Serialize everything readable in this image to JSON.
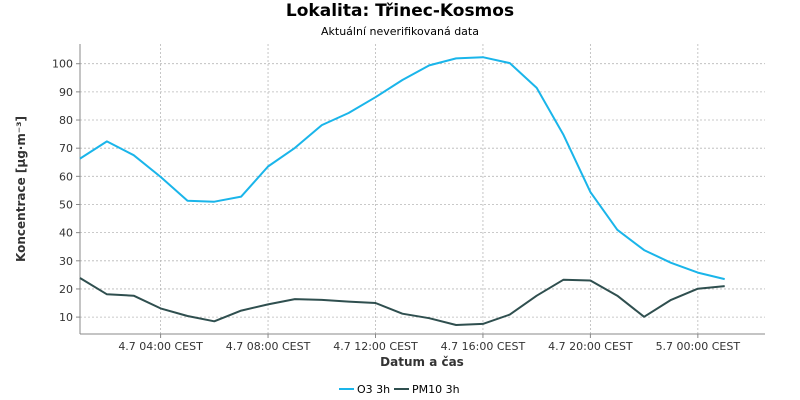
{
  "chart_data": {
    "type": "line",
    "title": "Lokalita: Třinec-Kosmos",
    "subtitle": "Aktuální neverifikovaná data",
    "xlabel": "Datum a čas",
    "ylabel": "Koncentrace [µg·m⁻³]",
    "ylim": [
      4,
      107
    ],
    "yticks": [
      10,
      20,
      30,
      40,
      50,
      60,
      70,
      80,
      90,
      100
    ],
    "xlim": [
      -1.0,
      24.5
    ],
    "xticks": [
      {
        "x": 2,
        "label": "4.7 04:00 CEST"
      },
      {
        "x": 6,
        "label": "4.7 08:00 CEST"
      },
      {
        "x": 10,
        "label": "4.7 12:00 CEST"
      },
      {
        "x": 14,
        "label": "4.7 16:00 CEST"
      },
      {
        "x": 18,
        "label": "4.7 20:00 CEST"
      },
      {
        "x": 22,
        "label": "5.7 00:00 CEST"
      }
    ],
    "grid": true,
    "legend_position": "bottom",
    "x": [
      -1,
      0,
      1,
      2,
      3,
      4,
      5,
      6,
      7,
      8,
      9,
      10,
      11,
      12,
      13,
      14,
      15,
      16,
      17,
      18,
      19,
      20,
      21,
      22,
      23
    ],
    "series": [
      {
        "name": "O3 3h",
        "color": "#1ab5ea",
        "values": [
          66.3,
          72.4,
          67.5,
          59.8,
          51.3,
          51.0,
          52.8,
          63.5,
          70.1,
          78.2,
          82.5,
          88.1,
          94.2,
          99.4,
          101.9,
          102.3,
          100.2,
          91.4,
          74.7,
          54.4,
          41.0,
          33.8,
          29.3,
          25.8,
          23.5
        ]
      },
      {
        "name": "PM10 3h",
        "color": "#2f4f4f",
        "values": [
          23.9,
          18.1,
          17.6,
          13.1,
          10.4,
          8.5,
          12.3,
          14.5,
          16.4,
          16.1,
          15.5,
          15.0,
          11.2,
          9.6,
          7.2,
          7.6,
          10.9,
          17.6,
          23.3,
          23.0,
          17.6,
          10.1,
          16.1,
          20.1,
          21.0
        ]
      }
    ]
  }
}
